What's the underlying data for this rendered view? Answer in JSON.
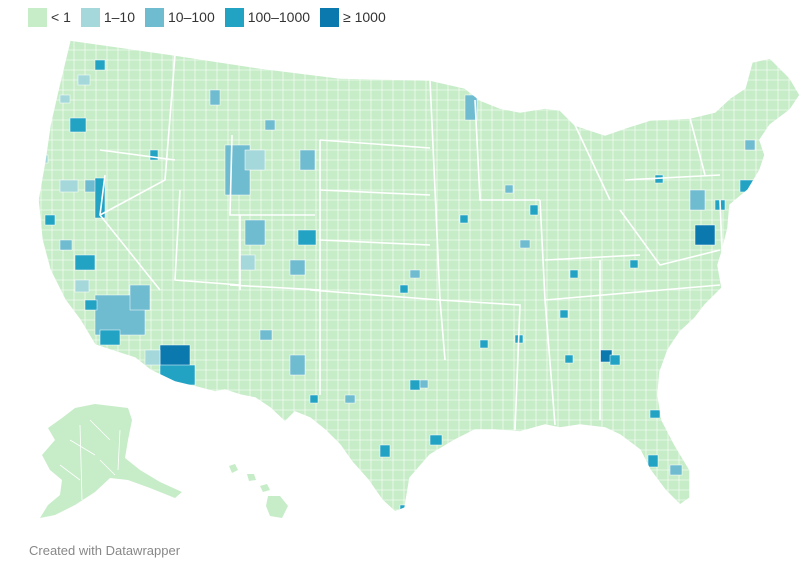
{
  "legend": {
    "items": [
      {
        "label": "< 1",
        "color": "#c7ecc8"
      },
      {
        "label": "1–10",
        "color": "#a5d8da"
      },
      {
        "label": "10–100",
        "color": "#6fbcd0"
      },
      {
        "label": "100–1000",
        "color": "#22a3c4"
      },
      {
        "label": "≥ 1000",
        "color": "#0b79ae"
      }
    ]
  },
  "map": {
    "base_color": "#c7ecc8",
    "border_color": "#ffffff",
    "regions": [
      "contiguous-us",
      "alaska",
      "hawaii"
    ]
  },
  "credit": "Created with Datawrapper"
}
